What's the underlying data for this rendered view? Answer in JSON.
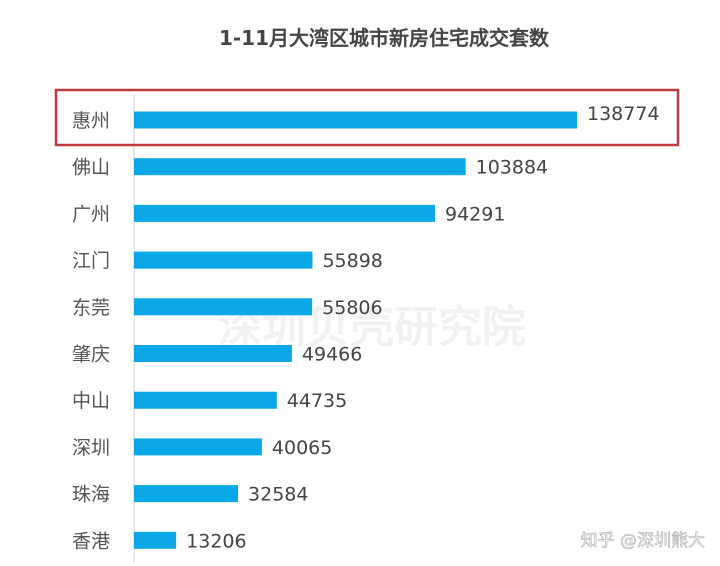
{
  "chart_data": {
    "type": "bar",
    "orientation": "horizontal",
    "title": "1-11月大湾区城市新房住宅成交套数",
    "categories": [
      "惠州",
      "佛山",
      "广州",
      "江门",
      "东莞",
      "肇庆",
      "中山",
      "深圳",
      "珠海",
      "香港"
    ],
    "values": [
      138774,
      103884,
      94291,
      55898,
      55806,
      49466,
      44735,
      40065,
      32584,
      13206
    ],
    "highlighted_category": "惠州",
    "xlabel": "",
    "ylabel": "",
    "xlim": [
      0,
      138774
    ],
    "grid": false,
    "bar_color": "#0aa8e6",
    "highlight_color": "#c0393f"
  },
  "watermark": "深圳贝壳研究院",
  "credit": "知乎 @深圳熊大"
}
